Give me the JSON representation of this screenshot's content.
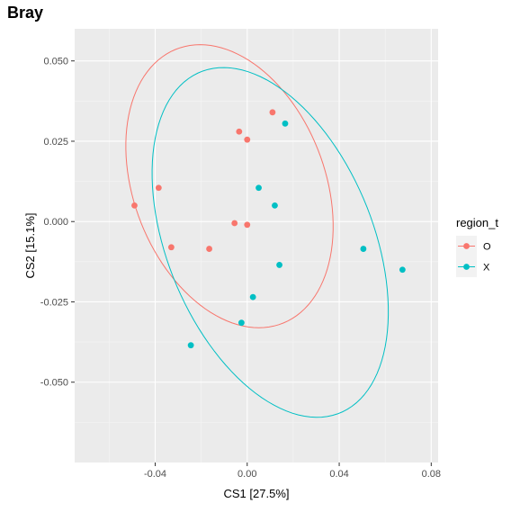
{
  "chart_data": {
    "type": "scatter",
    "title": "Bray",
    "xlabel": "CS1   [27.5%]",
    "ylabel": "CS2   [15.1%]",
    "xlim": [
      -0.075,
      0.083
    ],
    "ylim": [
      -0.075,
      0.06
    ],
    "x_ticks": [
      -0.04,
      0.0,
      0.04,
      0.08
    ],
    "x_tick_labels": [
      "-0.04",
      "0.00",
      "0.04",
      "0.08"
    ],
    "y_ticks": [
      -0.05,
      -0.025,
      0.0,
      0.025,
      0.05
    ],
    "y_tick_labels": [
      "-0.050",
      "-0.025",
      "0.000",
      "0.025",
      "0.050"
    ],
    "grid": true,
    "legend": {
      "title": "region_t",
      "position": "right",
      "entries": [
        {
          "label": "O",
          "color": "#F8766D"
        },
        {
          "label": "X",
          "color": "#00BFC4"
        }
      ]
    },
    "series": [
      {
        "name": "O",
        "color": "#F8766D",
        "points": [
          {
            "x": -0.049,
            "y": 0.005
          },
          {
            "x": -0.0385,
            "y": 0.0105
          },
          {
            "x": -0.033,
            "y": -0.008
          },
          {
            "x": -0.0165,
            "y": -0.0085
          },
          {
            "x": -0.0055,
            "y": -0.0005
          },
          {
            "x": 0.0,
            "y": -0.001
          },
          {
            "x": -0.0035,
            "y": 0.028
          },
          {
            "x": 0.0,
            "y": 0.0255
          },
          {
            "x": 0.011,
            "y": 0.034
          }
        ],
        "ellipse": {
          "cx": -0.0077,
          "cy": 0.011,
          "rx": 0.0505,
          "ry": 0.0377,
          "angle_deg": -42.7
        }
      },
      {
        "name": "X",
        "color": "#00BFC4",
        "points": [
          {
            "x": 0.0165,
            "y": 0.0305
          },
          {
            "x": 0.005,
            "y": 0.0105
          },
          {
            "x": 0.012,
            "y": 0.005
          },
          {
            "x": 0.014,
            "y": -0.0135
          },
          {
            "x": 0.0025,
            "y": -0.0235
          },
          {
            "x": -0.0025,
            "y": -0.0315
          },
          {
            "x": -0.0245,
            "y": -0.0385
          },
          {
            "x": 0.0505,
            "y": -0.0085
          },
          {
            "x": 0.0675,
            "y": -0.015
          }
        ],
        "ellipse": {
          "cx": 0.01,
          "cy": -0.0065,
          "rx": 0.0626,
          "ry": 0.041,
          "angle_deg": -49.2
        }
      }
    ]
  }
}
